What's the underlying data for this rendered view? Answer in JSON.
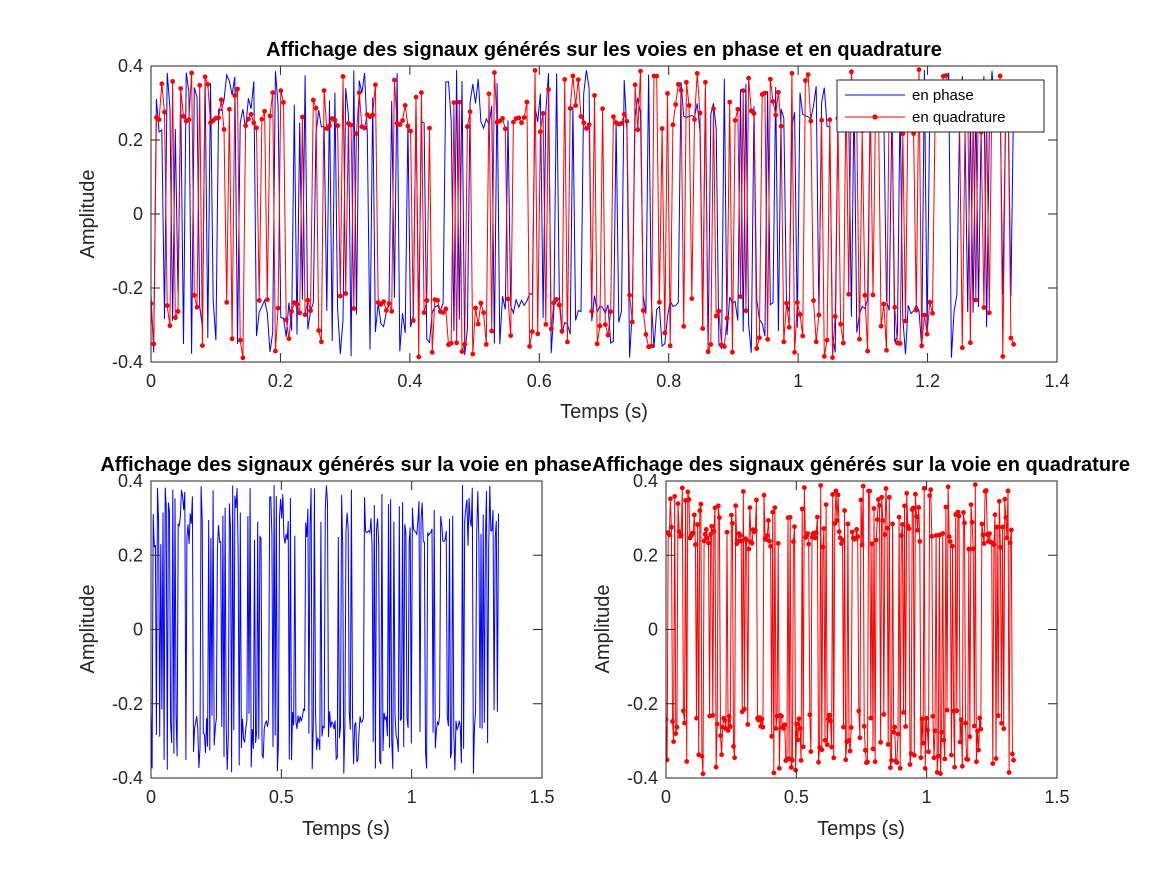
{
  "chart_data": [
    {
      "type": "line",
      "title": "Affichage des signaux générés sur les voies en phase et en quadrature",
      "xlabel": "Temps (s)",
      "ylabel": "Amplitude",
      "xlim": [
        0,
        1.4
      ],
      "ylim": [
        -0.4,
        0.4
      ],
      "xticks": [
        0,
        0.2,
        0.4,
        0.6,
        0.8,
        1,
        1.2,
        1.4
      ],
      "xtick_labels": [
        "0",
        "0.2",
        "0.4",
        "0.6",
        "0.8",
        "1",
        "1.2",
        "1.4"
      ],
      "yticks": [
        -0.4,
        -0.2,
        0,
        0.2,
        0.4
      ],
      "ytick_labels": [
        "-0.4",
        "-0.2",
        "0",
        "0.2",
        "0.4"
      ],
      "grid": false,
      "legend": "top-right",
      "series": [
        {
          "name": "en phase",
          "color": "#0000FF",
          "marker": "none",
          "x_range": [
            0,
            1.333
          ],
          "amplitude_range": [
            -0.39,
            0.39
          ],
          "levels": [
            -0.25,
            0.25
          ]
        },
        {
          "name": "en quadrature",
          "color": "#FF0000",
          "marker": "dot",
          "x_range": [
            0,
            1.333
          ],
          "amplitude_range": [
            -0.39,
            0.39
          ],
          "levels": [
            -0.25,
            0.25
          ]
        }
      ]
    },
    {
      "type": "line",
      "title": "Affichage des signaux générés sur la voie en phase",
      "xlabel": "Temps (s)",
      "ylabel": "Amplitude",
      "xlim": [
        0,
        1.5
      ],
      "ylim": [
        -0.4,
        0.4
      ],
      "xticks": [
        0,
        0.5,
        1,
        1.5
      ],
      "xtick_labels": [
        "0",
        "0.5",
        "1",
        "1.5"
      ],
      "yticks": [
        -0.4,
        -0.2,
        0,
        0.2,
        0.4
      ],
      "ytick_labels": [
        "-0.4",
        "-0.2",
        "0",
        "0.2",
        "0.4"
      ],
      "grid": false,
      "series": [
        {
          "color": "#0000FF",
          "marker": "none",
          "x_range": [
            0,
            1.333
          ],
          "amplitude_range": [
            -0.39,
            0.39
          ],
          "levels": [
            -0.25,
            0.25
          ]
        }
      ]
    },
    {
      "type": "line",
      "title": "Affichage des signaux générés sur la voie en quadrature",
      "xlabel": "Temps (s)",
      "ylabel": "Amplitude",
      "xlim": [
        0,
        1.5
      ],
      "ylim": [
        -0.4,
        0.4
      ],
      "xticks": [
        0,
        0.5,
        1,
        1.5
      ],
      "xtick_labels": [
        "0",
        "0.5",
        "1",
        "1.5"
      ],
      "yticks": [
        -0.4,
        -0.2,
        0,
        0.2,
        0.4
      ],
      "ytick_labels": [
        "-0.4",
        "-0.2",
        "0",
        "0.2",
        "0.4"
      ],
      "grid": false,
      "series": [
        {
          "color": "#FF0000",
          "marker": "dot",
          "x_range": [
            0,
            1.333
          ],
          "amplitude_range": [
            -0.39,
            0.39
          ],
          "levels": [
            -0.25,
            0.25
          ]
        }
      ]
    }
  ]
}
